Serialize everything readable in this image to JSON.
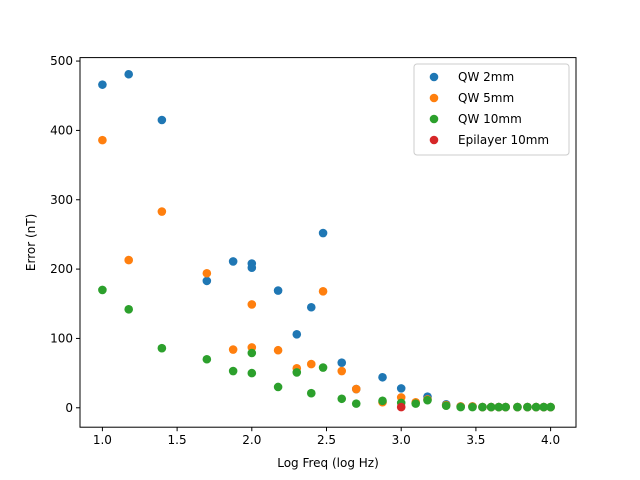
{
  "chart_data": {
    "type": "scatter",
    "title": "",
    "xlabel": "Log Freq (log Hz)",
    "ylabel": "Error (nT)",
    "xlim": [
      0.85,
      4.17
    ],
    "ylim": [
      -28,
      505
    ],
    "xticks": [
      1.0,
      1.5,
      2.0,
      2.5,
      3.0,
      3.5,
      4.0
    ],
    "xtick_labels": [
      "1.0",
      "1.5",
      "2.0",
      "2.5",
      "3.0",
      "3.5",
      "4.0"
    ],
    "yticks": [
      0,
      100,
      200,
      300,
      400,
      500
    ],
    "ytick_labels": [
      "0",
      "100",
      "200",
      "300",
      "400",
      "500"
    ],
    "grid": false,
    "legend_position": "top-right",
    "series": [
      {
        "name": "QW 2mm",
        "color": "#1f77b4",
        "points": [
          [
            1.0,
            466
          ],
          [
            1.176,
            481
          ],
          [
            1.398,
            415
          ],
          [
            1.699,
            183
          ],
          [
            1.875,
            211
          ],
          [
            2.0,
            208
          ],
          [
            2.0,
            202
          ],
          [
            2.176,
            169
          ],
          [
            2.301,
            106
          ],
          [
            2.398,
            145
          ],
          [
            2.477,
            252
          ],
          [
            2.602,
            65
          ],
          [
            2.699,
            27
          ],
          [
            2.875,
            44
          ],
          [
            3.0,
            28
          ],
          [
            3.176,
            16
          ],
          [
            3.301,
            5
          ],
          [
            3.398,
            2
          ],
          [
            3.477,
            2
          ],
          [
            3.544,
            1
          ],
          [
            3.602,
            1
          ],
          [
            3.653,
            1
          ],
          [
            3.699,
            1
          ],
          [
            3.778,
            1
          ],
          [
            3.845,
            1
          ],
          [
            3.903,
            1
          ],
          [
            3.954,
            1
          ],
          [
            4.0,
            1
          ]
        ]
      },
      {
        "name": "QW 5mm",
        "color": "#ff7f0e",
        "points": [
          [
            1.0,
            386
          ],
          [
            1.176,
            213
          ],
          [
            1.398,
            283
          ],
          [
            1.699,
            194
          ],
          [
            1.875,
            84
          ],
          [
            2.0,
            149
          ],
          [
            2.0,
            87
          ],
          [
            2.176,
            83
          ],
          [
            2.301,
            57
          ],
          [
            2.398,
            63
          ],
          [
            2.477,
            168
          ],
          [
            2.602,
            53
          ],
          [
            2.699,
            27
          ],
          [
            2.875,
            8
          ],
          [
            3.0,
            15
          ],
          [
            3.097,
            8
          ],
          [
            3.176,
            12
          ],
          [
            3.301,
            4
          ],
          [
            3.398,
            2
          ],
          [
            3.477,
            2
          ],
          [
            3.544,
            1
          ],
          [
            3.602,
            1
          ],
          [
            3.653,
            1
          ],
          [
            3.699,
            1
          ],
          [
            3.778,
            1
          ],
          [
            3.845,
            1
          ],
          [
            3.903,
            1
          ],
          [
            3.954,
            1
          ],
          [
            4.0,
            1
          ]
        ]
      },
      {
        "name": "QW 10mm",
        "color": "#2ca02c",
        "points": [
          [
            1.0,
            170
          ],
          [
            1.176,
            142
          ],
          [
            1.398,
            86
          ],
          [
            1.699,
            70
          ],
          [
            1.875,
            53
          ],
          [
            2.0,
            79
          ],
          [
            2.0,
            50
          ],
          [
            2.176,
            30
          ],
          [
            2.301,
            51
          ],
          [
            2.398,
            21
          ],
          [
            2.477,
            58
          ],
          [
            2.602,
            13
          ],
          [
            2.699,
            6
          ],
          [
            2.875,
            10
          ],
          [
            3.0,
            7
          ],
          [
            3.097,
            6
          ],
          [
            3.176,
            11
          ],
          [
            3.301,
            3
          ],
          [
            3.398,
            1
          ],
          [
            3.477,
            1
          ],
          [
            3.544,
            1
          ],
          [
            3.602,
            1
          ],
          [
            3.653,
            1
          ],
          [
            3.699,
            1
          ],
          [
            3.778,
            1
          ],
          [
            3.845,
            1
          ],
          [
            3.903,
            1
          ],
          [
            3.954,
            1
          ],
          [
            4.0,
            1
          ]
        ]
      },
      {
        "name": "Epilayer 10mm",
        "color": "#d62728",
        "points": [
          [
            3.0,
            1
          ]
        ]
      }
    ]
  }
}
